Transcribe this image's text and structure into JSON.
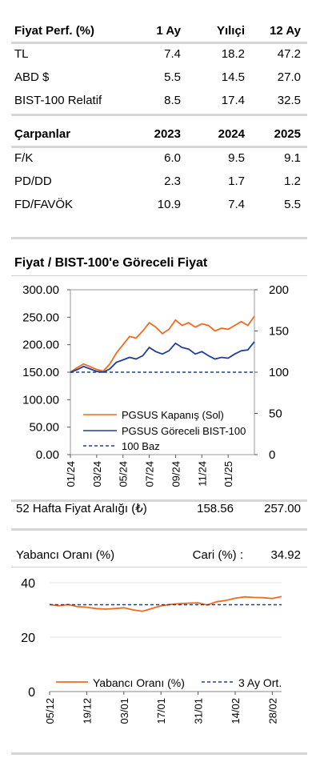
{
  "perf": {
    "headers": [
      "Fiyat Perf. (%)",
      "1 Ay",
      "Yılıçi",
      "12 Ay"
    ],
    "rows": [
      [
        "TL",
        "7.4",
        "18.2",
        "47.2"
      ],
      [
        "ABD $",
        "5.5",
        "14.5",
        "27.0"
      ],
      [
        "BIST-100 Relatif",
        "8.5",
        "17.4",
        "32.5"
      ]
    ]
  },
  "multiples": {
    "headers": [
      "Çarpanlar",
      "2023",
      "2024",
      "2025"
    ],
    "rows": [
      [
        "F/K",
        "6.0",
        "9.5",
        "9.1"
      ],
      [
        "PD/DD",
        "2.3",
        "1.7",
        "1.2"
      ],
      [
        "FD/FAVÖK",
        "10.9",
        "7.4",
        "5.5"
      ]
    ]
  },
  "chart1_title": "Fiyat / BIST-100'e Göreceli Fiyat",
  "range": {
    "label": "52 Hafta Fiyat Aralığı (₺)",
    "low": "158.56",
    "high": "257.00"
  },
  "foreign": {
    "label": "Yabancı Oranı (%)",
    "cari_label": "Cari (%) :",
    "cari_value": "34.92"
  },
  "colors": {
    "orange": "#f26b1d",
    "navy": "#1f3d99",
    "grid": "#e6e6e6",
    "rule": "#d6d6d6"
  },
  "chart_data": [
    {
      "type": "line",
      "title": "Fiyat / BIST-100'e Göreceli Fiyat",
      "x_tick_labels": [
        "01/24",
        "03/24",
        "05/24",
        "07/24",
        "09/24",
        "11/24",
        "01/25"
      ],
      "x_range": [
        0,
        14
      ],
      "y_left": {
        "ticks": [
          "0.00",
          "50.00",
          "100.00",
          "150.00",
          "200.00",
          "250.00",
          "300.00"
        ],
        "range": [
          0,
          300
        ]
      },
      "y_right": {
        "ticks": [
          "0",
          "50",
          "100",
          "150",
          "200"
        ],
        "range": [
          0,
          200
        ]
      },
      "legend": [
        "PGSUS Kapanış (Sol)",
        "PGSUS Göreceli BIST-100",
        "100 Baz"
      ],
      "legend_position": "bottom-left",
      "series": [
        {
          "name": "PGSUS Kapanış (Sol)",
          "axis": "left",
          "style": "solid",
          "x": [
            0,
            0.5,
            1,
            1.5,
            2,
            2.5,
            3,
            3.5,
            4,
            4.5,
            5,
            5.5,
            6,
            6.5,
            7,
            7.5,
            8,
            8.5,
            9,
            9.5,
            10,
            10.5,
            11,
            11.5,
            12,
            12.5,
            13,
            13.5,
            14
          ],
          "values": [
            150,
            158,
            165,
            160,
            155,
            152,
            165,
            185,
            200,
            215,
            212,
            225,
            240,
            232,
            220,
            228,
            245,
            235,
            240,
            232,
            238,
            235,
            225,
            230,
            228,
            235,
            242,
            235,
            252
          ]
        },
        {
          "name": "PGSUS Göreceli BIST-100",
          "axis": "right",
          "style": "solid",
          "x": [
            0,
            0.5,
            1,
            1.5,
            2,
            2.5,
            3,
            3.5,
            4,
            4.5,
            5,
            5.5,
            6,
            6.5,
            7,
            7.5,
            8,
            8.5,
            9,
            9.5,
            10,
            10.5,
            11,
            11.5,
            12,
            12.5,
            13,
            13.5,
            14
          ],
          "values": [
            100,
            103,
            107,
            104,
            101,
            100,
            104,
            112,
            115,
            118,
            116,
            120,
            130,
            125,
            122,
            126,
            135,
            130,
            128,
            122,
            125,
            120,
            116,
            118,
            117,
            122,
            126,
            127,
            137
          ]
        },
        {
          "name": "100 Baz",
          "axis": "right",
          "style": "dashed",
          "x": [
            0,
            14
          ],
          "values": [
            100,
            100
          ]
        }
      ]
    },
    {
      "type": "line",
      "title": "Yabancı Oranı (%)",
      "x_tick_labels": [
        "05/12",
        "19/12",
        "03/01",
        "17/01",
        "31/01",
        "14/02",
        "28/02"
      ],
      "x_range": [
        0,
        12.5
      ],
      "y": {
        "ticks": [
          "0",
          "20",
          "40"
        ],
        "range": [
          0,
          40
        ]
      },
      "legend": [
        "Yabancı Oranı (%)",
        "3 Ay Ort."
      ],
      "legend_position": "bottom",
      "series": [
        {
          "name": "Yabancı Oranı (%)",
          "style": "solid",
          "x": [
            0,
            0.5,
            1,
            1.5,
            2,
            2.5,
            3,
            3.5,
            4,
            4.5,
            5,
            5.5,
            6,
            6.5,
            7,
            7.5,
            8,
            8.5,
            9,
            9.5,
            10,
            10.5,
            11,
            11.5,
            12,
            12.5
          ],
          "values": [
            32,
            31.5,
            32,
            31.2,
            31,
            30.5,
            30.3,
            30.5,
            30.8,
            30,
            29.5,
            30.5,
            31.5,
            32,
            32.3,
            32.5,
            32.6,
            31.8,
            33,
            33.5,
            34.3,
            34.8,
            34.6,
            34.5,
            34.2,
            34.9
          ]
        },
        {
          "name": "3 Ay Ort.",
          "style": "dashed",
          "x": [
            0,
            12.5
          ],
          "values": [
            31.9,
            31.9
          ]
        }
      ]
    }
  ]
}
